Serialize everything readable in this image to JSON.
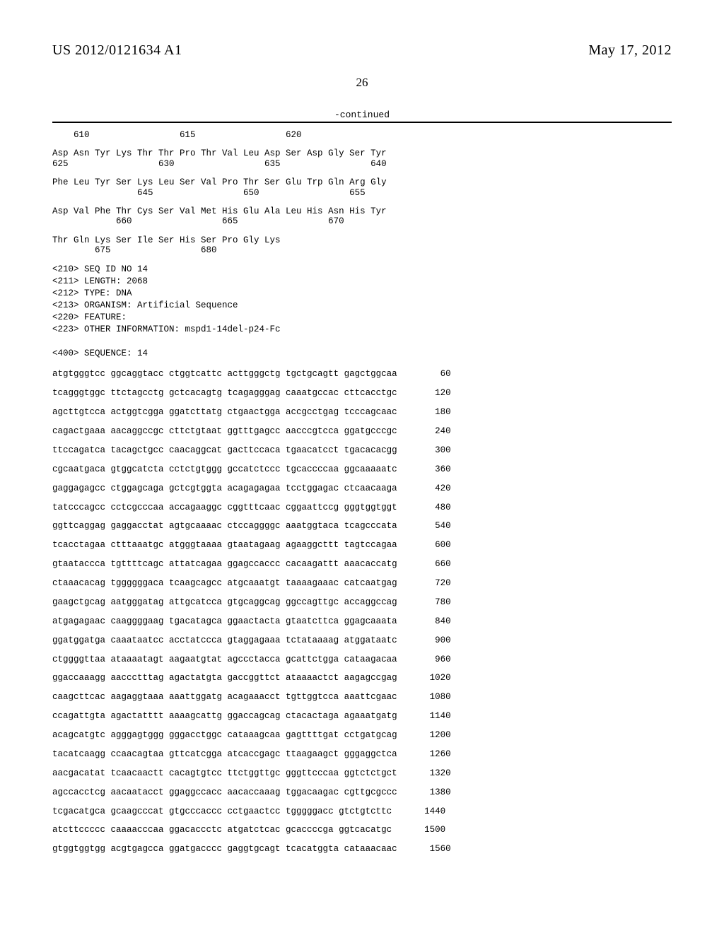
{
  "header": {
    "pub_number": "US 2012/0121634 A1",
    "pub_date": "May 17, 2012"
  },
  "page_number": "26",
  "continued_label": "-continued",
  "protein_tail": [
    {
      "aa": "    610                 615                 620",
      "nums": ""
    },
    {
      "aa": "Asp Asn Tyr Lys Thr Thr Pro Thr Val Leu Asp Ser Asp Gly Ser Tyr",
      "nums": "625                 630                 635                 640"
    },
    {
      "aa": "Phe Leu Tyr Ser Lys Leu Ser Val Pro Thr Ser Glu Trp Gln Arg Gly",
      "nums": "                645                 650                 655"
    },
    {
      "aa": "Asp Val Phe Thr Cys Ser Val Met His Glu Ala Leu His Asn His Tyr",
      "nums": "            660                 665                 670"
    },
    {
      "aa": "Thr Gln Lys Ser Ile Ser His Ser Pro Gly Lys",
      "nums": "        675                 680"
    }
  ],
  "meta": [
    "<210> SEQ ID NO 14",
    "<211> LENGTH: 2068",
    "<212> TYPE: DNA",
    "<213> ORGANISM: Artificial Sequence",
    "<220> FEATURE:",
    "<223> OTHER INFORMATION: mspd1-14del-p24-Fc",
    "",
    "<400> SEQUENCE: 14"
  ],
  "dna_rows": [
    {
      "seq": "atgtgggtcc ggcaggtacc ctggtcattc acttgggctg tgctgcagtt gagctggcaa",
      "pos": "60"
    },
    {
      "seq": "tcagggtggc ttctagcctg gctcacagtg tcagagggag caaatgccac cttcacctgc",
      "pos": "120"
    },
    {
      "seq": "agcttgtcca actggtcgga ggatcttatg ctgaactgga accgcctgag tcccagcaac",
      "pos": "180"
    },
    {
      "seq": "cagactgaaa aacaggccgc cttctgtaat ggtttgagcc aacccgtcca ggatgcccgc",
      "pos": "240"
    },
    {
      "seq": "ttccagatca tacagctgcc caacaggcat gacttccaca tgaacatcct tgacacacgg",
      "pos": "300"
    },
    {
      "seq": "cgcaatgaca gtggcatcta cctctgtggg gccatctccc tgcaccccaa ggcaaaaatc",
      "pos": "360"
    },
    {
      "seq": "gaggagagcc ctggagcaga gctcgtggta acagagagaa tcctggagac ctcaacaaga",
      "pos": "420"
    },
    {
      "seq": "tatcccagcc cctcgcccaa accagaaggc cggtttcaac cggaattccg gggtggtggt",
      "pos": "480"
    },
    {
      "seq": "ggttcaggag gaggacctat agtgcaaaac ctccaggggc aaatggtaca tcagcccata",
      "pos": "540"
    },
    {
      "seq": "tcacctagaa ctttaaatgc atgggtaaaa gtaatagaag agaaggcttt tagtccagaa",
      "pos": "600"
    },
    {
      "seq": "gtaataccca tgttttcagc attatcagaa ggagccaccc cacaagattt aaacaccatg",
      "pos": "660"
    },
    {
      "seq": "ctaaacacag tggggggaca tcaagcagcc atgcaaatgt taaaagaaac catcaatgag",
      "pos": "720"
    },
    {
      "seq": "gaagctgcag aatgggatag attgcatcca gtgcaggcag ggccagttgc accaggccag",
      "pos": "780"
    },
    {
      "seq": "atgagagaac caaggggaag tgacatagca ggaactacta gtaatcttca ggagcaaata",
      "pos": "840"
    },
    {
      "seq": "ggatggatga caaataatcc acctatccca gtaggagaaa tctataaaag atggataatc",
      "pos": "900"
    },
    {
      "seq": "ctggggttaa ataaaatagt aagaatgtat agccctacca gcattctgga cataagacaa",
      "pos": "960"
    },
    {
      "seq": "ggaccaaagg aaccctttag agactatgta gaccggttct ataaaactct aagagccgag",
      "pos": "1020"
    },
    {
      "seq": "caagcttcac aagaggtaaa aaattggatg acagaaacct tgttggtcca aaattcgaac",
      "pos": "1080"
    },
    {
      "seq": "ccagattgta agactatttt aaaagcattg ggaccagcag ctacactaga agaaatgatg",
      "pos": "1140"
    },
    {
      "seq": "acagcatgtc agggagtggg gggacctggc cataaagcaa gagttttgat cctgatgcag",
      "pos": "1200"
    },
    {
      "seq": "tacatcaagg ccaacagtaa gttcatcgga atcaccgagc ttaagaagct gggaggctca",
      "pos": "1260"
    },
    {
      "seq": "aacgacatat tcaacaactt cacagtgtcc ttctggttgc gggttcccaa ggtctctgct",
      "pos": "1320"
    },
    {
      "seq": "agccacctcg aacaatacct ggaggccacc aacaccaaag tggacaagac cgttgcgccc",
      "pos": "1380"
    },
    {
      "seq": "tcgacatgca gcaagcccat gtgcccaccc cctgaactcc tgggggacc gtctgtcttc",
      "pos": "1440"
    },
    {
      "seq": "atcttccccc caaaacccaa ggacaccctc atgatctcac gcaccccga ggtcacatgc",
      "pos": "1500"
    },
    {
      "seq": "gtggtggtgg acgtgagcca ggatgacccc gaggtgcagt tcacatggta cataaacaac",
      "pos": "1560"
    }
  ]
}
